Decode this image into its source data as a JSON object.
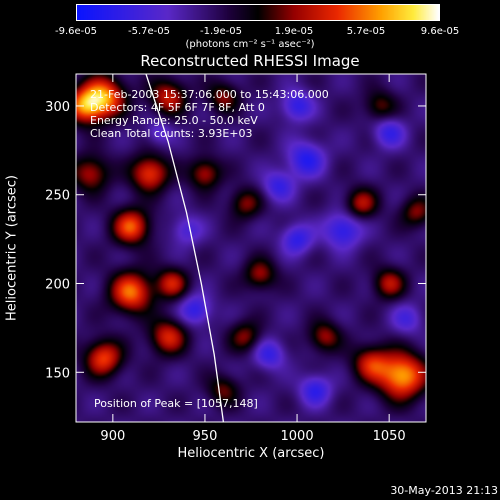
{
  "colorbar": {
    "ticks": [
      "-9.6e-05",
      "-5.7e-05",
      "-1.9e-05",
      "1.9e-05",
      "5.7e-05",
      "9.6e-05"
    ],
    "units": "(photons cm⁻² s⁻¹ asec⁻²)"
  },
  "title": "Reconstructed RHESSI Image",
  "info_lines": [
    "21-Feb-2003 15:37:06.000 to 15:43:06.000",
    "Detectors: 4F 5F 6F 7F 8F, Att 0",
    "Energy Range: 25.0 - 50.0 keV",
    "Clean    Total counts: 3.93E+03"
  ],
  "peak_label": "Position of Peak = [1057,148]",
  "timestamp": "30-May-2013 21:13",
  "chart_data": {
    "type": "heatmap",
    "title": "Reconstructed RHESSI Image",
    "xlabel": "Heliocentric X (arcsec)",
    "ylabel": "Heliocentric Y (arcsec)",
    "xlim": [
      880,
      1070
    ],
    "ylim": [
      122,
      318
    ],
    "xticks": [
      900,
      950,
      1000,
      1050
    ],
    "yticks": [
      150,
      200,
      250,
      300
    ],
    "colorbar_range": [
      -9.6e-05,
      9.6e-05
    ],
    "limb_curve": [
      [
        918,
        318
      ],
      [
        930,
        280
      ],
      [
        940,
        240
      ],
      [
        948,
        200
      ],
      [
        955,
        160
      ],
      [
        960,
        122
      ]
    ],
    "peak": [
      1057,
      148
    ],
    "blobs": [
      {
        "x": 885,
        "y": 300,
        "a": 0.8,
        "s": 7
      },
      {
        "x": 895,
        "y": 305,
        "a": 0.9,
        "s": 8
      },
      {
        "x": 930,
        "y": 305,
        "a": 0.6,
        "s": 7
      },
      {
        "x": 920,
        "y": 262,
        "a": 0.75,
        "s": 7
      },
      {
        "x": 888,
        "y": 262,
        "a": 0.55,
        "s": 7
      },
      {
        "x": 910,
        "y": 232,
        "a": 0.8,
        "s": 7
      },
      {
        "x": 950,
        "y": 262,
        "a": 0.55,
        "s": 6
      },
      {
        "x": 972,
        "y": 245,
        "a": 0.45,
        "s": 6
      },
      {
        "x": 910,
        "y": 195,
        "a": 0.85,
        "s": 8
      },
      {
        "x": 932,
        "y": 200,
        "a": 0.6,
        "s": 6
      },
      {
        "x": 895,
        "y": 158,
        "a": 0.75,
        "s": 7
      },
      {
        "x": 930,
        "y": 170,
        "a": 0.65,
        "s": 7
      },
      {
        "x": 960,
        "y": 140,
        "a": 0.4,
        "s": 6
      },
      {
        "x": 980,
        "y": 205,
        "a": 0.5,
        "s": 6
      },
      {
        "x": 972,
        "y": 170,
        "a": 0.45,
        "s": 6
      },
      {
        "x": 1015,
        "y": 170,
        "a": 0.5,
        "s": 6
      },
      {
        "x": 1035,
        "y": 245,
        "a": 0.55,
        "s": 6
      },
      {
        "x": 1050,
        "y": 200,
        "a": 0.55,
        "s": 6
      },
      {
        "x": 1065,
        "y": 240,
        "a": 0.45,
        "s": 6
      },
      {
        "x": 1040,
        "y": 155,
        "a": 0.6,
        "s": 7
      },
      {
        "x": 1057,
        "y": 148,
        "a": 1.0,
        "s": 9
      },
      {
        "x": 960,
        "y": 305,
        "a": 0.45,
        "s": 6
      },
      {
        "x": 1045,
        "y": 300,
        "a": 0.4,
        "s": 6
      },
      {
        "x": 940,
        "y": 230,
        "a": -0.35,
        "s": 6
      },
      {
        "x": 1005,
        "y": 270,
        "a": -0.55,
        "s": 7
      },
      {
        "x": 1025,
        "y": 230,
        "a": -0.55,
        "s": 7
      },
      {
        "x": 1000,
        "y": 225,
        "a": -0.5,
        "s": 6
      },
      {
        "x": 1050,
        "y": 285,
        "a": -0.45,
        "s": 6
      },
      {
        "x": 1010,
        "y": 140,
        "a": -0.5,
        "s": 6
      },
      {
        "x": 985,
        "y": 160,
        "a": -0.45,
        "s": 6
      },
      {
        "x": 945,
        "y": 185,
        "a": -0.5,
        "s": 6
      },
      {
        "x": 1000,
        "y": 300,
        "a": -0.5,
        "s": 6
      },
      {
        "x": 990,
        "y": 255,
        "a": -0.45,
        "s": 6
      },
      {
        "x": 1060,
        "y": 180,
        "a": -0.35,
        "s": 6
      },
      {
        "x": 925,
        "y": 285,
        "a": -0.3,
        "s": 5
      }
    ]
  }
}
